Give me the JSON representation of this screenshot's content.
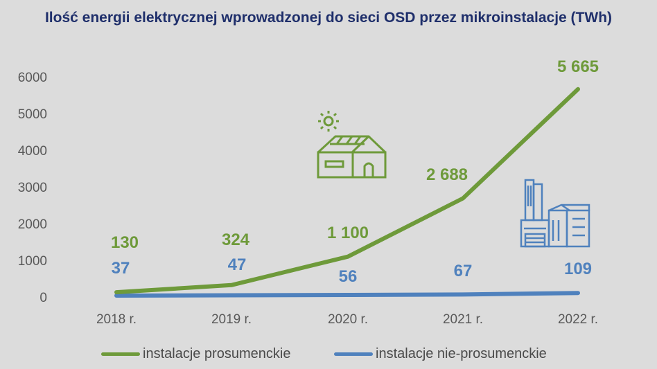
{
  "title": "Ilość energii elektrycznej wprowadzonej do sieci OSD przez mikroinstalacje (TWh)",
  "colors": {
    "prosument": "#6e9a3a",
    "nieprosument": "#4f81bd",
    "axis_text": "#595959",
    "house_icon": "#6e9a3a",
    "factory_icon": "#4f81bd"
  },
  "icons": [
    "sun-house-icon",
    "factory-icon"
  ],
  "chart_data": {
    "type": "line",
    "categories": [
      "2018 r.",
      "2019 r.",
      "2020 r.",
      "2021 r.",
      "2022 r."
    ],
    "ylim": [
      0,
      6000
    ],
    "yticks": [
      "0",
      "1000",
      "2000",
      "3000",
      "4000",
      "5000",
      "6000"
    ],
    "grid": false,
    "legend_position": "bottom",
    "series": [
      {
        "name": "instalacje prosumenckie",
        "values": [
          130,
          324,
          1100,
          2688,
          5665
        ],
        "labels": [
          "130",
          "324",
          "1 100",
          "2 688",
          "5 665"
        ]
      },
      {
        "name": "instalacje nie-prosumenckie",
        "values": [
          37,
          47,
          56,
          67,
          109
        ],
        "labels": [
          "37",
          "47",
          "56",
          "67",
          "109"
        ]
      }
    ]
  }
}
